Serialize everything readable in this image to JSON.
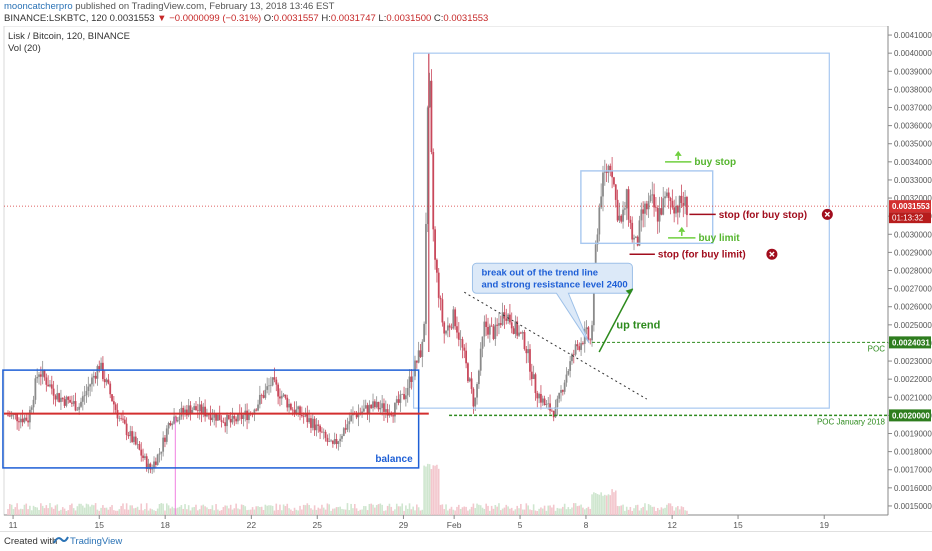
{
  "header": {
    "author": "mooncatcherpro",
    "published": "published on TradingView.com, February 13, 2018 13:46 EST",
    "symbol": "BINANCE:LSKBTC, 120",
    "last": "0.0031553",
    "change": "−0.0000099 (−0.31%)",
    "o_label": "O:",
    "o": "0.0031557",
    "h_label": "H:",
    "h": "0.0031747",
    "l_label": "L:",
    "l": "0.0031500",
    "c_label": "C:",
    "c": "0.0031553"
  },
  "footer": {
    "created": "Created with",
    "brand": "TradingView"
  },
  "colors": {
    "up": "#8a8a8a",
    "down": "#c9485b",
    "blue_box": "#1e5fd6",
    "light_box": "#a8c8f0",
    "red_line": "#d32f2f",
    "green": "#2e8b1e",
    "dark_red": "#a10d1d",
    "callout_fill": "#dce9f8",
    "callout_text": "#1e5fd6",
    "price_bg": "#d32f2f",
    "poc_bg": "#2e7d1e"
  },
  "chart_data": {
    "type": "candlestick",
    "title": "Lisk / Bitcoin, 120, BINANCE",
    "indicator": "Vol (20)",
    "ylim": [
      0.00145,
      0.00415
    ],
    "yticks": [
      "0.0015000",
      "0.0016000",
      "0.0017000",
      "0.0018000",
      "0.0019000",
      "0.0020000",
      "0.0021000",
      "0.0022000",
      "0.0023000",
      "0.0024000",
      "0.0025000",
      "0.0026000",
      "0.0027000",
      "0.0028000",
      "0.0029000",
      "0.0030000",
      "0.0031000",
      "0.0032000",
      "0.0033000",
      "0.0034000",
      "0.0035000",
      "0.0036000",
      "0.0037000",
      "0.0038000",
      "0.0039000",
      "0.0040000",
      "0.0041000"
    ],
    "xlim": [
      0,
      86
    ],
    "xticks": [
      {
        "label": "11",
        "x": 0.5
      },
      {
        "label": "15",
        "x": 9
      },
      {
        "label": "18",
        "x": 15.5
      },
      {
        "label": "22",
        "x": 24
      },
      {
        "label": "25",
        "x": 30.5
      },
      {
        "label": "29",
        "x": 39
      },
      {
        "label": "Feb",
        "x": 44
      },
      {
        "label": "5",
        "x": 50.5
      },
      {
        "label": "8",
        "x": 57
      },
      {
        "label": "12",
        "x": 65.5
      },
      {
        "label": "15",
        "x": 72
      },
      {
        "label": "19",
        "x": 80.5
      }
    ],
    "price_path": [
      [
        0,
        0.002
      ],
      [
        2,
        0.00198
      ],
      [
        3,
        0.00225
      ],
      [
        5,
        0.0021
      ],
      [
        7,
        0.00205
      ],
      [
        9,
        0.00228
      ],
      [
        11,
        0.00198
      ],
      [
        13,
        0.0018
      ],
      [
        14,
        0.0017
      ],
      [
        15,
        0.0018
      ],
      [
        16,
        0.00198
      ],
      [
        18,
        0.00204
      ],
      [
        20,
        0.00201
      ],
      [
        22,
        0.00196
      ],
      [
        24,
        0.00202
      ],
      [
        26,
        0.00218
      ],
      [
        28,
        0.00204
      ],
      [
        30,
        0.00196
      ],
      [
        32,
        0.00182
      ],
      [
        34,
        0.002
      ],
      [
        36,
        0.00205
      ],
      [
        38,
        0.00203
      ],
      [
        39,
        0.0021
      ],
      [
        40,
        0.00225
      ],
      [
        41,
        0.0024
      ],
      [
        41.5,
        0.00395
      ],
      [
        42,
        0.0029
      ],
      [
        43,
        0.00245
      ],
      [
        44,
        0.00255
      ],
      [
        45,
        0.00232
      ],
      [
        46,
        0.00205
      ],
      [
        47,
        0.0025
      ],
      [
        48,
        0.00245
      ],
      [
        49,
        0.00258
      ],
      [
        50,
        0.00248
      ],
      [
        51,
        0.0024
      ],
      [
        52,
        0.00215
      ],
      [
        53,
        0.00205
      ],
      [
        54,
        0.00202
      ],
      [
        55,
        0.00222
      ],
      [
        56,
        0.00237
      ],
      [
        57,
        0.00245
      ],
      [
        57.5,
        0.0024
      ],
      [
        58,
        0.00296
      ],
      [
        58.5,
        0.00325
      ],
      [
        59,
        0.00335
      ],
      [
        59.5,
        0.0034
      ],
      [
        60,
        0.00315
      ],
      [
        60.5,
        0.00305
      ],
      [
        61,
        0.0032
      ],
      [
        61.5,
        0.003
      ],
      [
        62,
        0.00293
      ],
      [
        62.5,
        0.0031
      ],
      [
        63,
        0.00315
      ],
      [
        63.5,
        0.00318
      ],
      [
        64,
        0.0031
      ],
      [
        64.5,
        0.00315
      ],
      [
        65,
        0.0032
      ],
      [
        65.5,
        0.00318
      ],
      [
        66,
        0.00315
      ],
      [
        66.5,
        0.00318
      ],
      [
        67,
        0.00315
      ]
    ],
    "annotations": {
      "balance_label": "balance",
      "callout": [
        "break out of the trend line",
        "and strong resistance level 2400"
      ],
      "up_trend": "up trend",
      "buy_stop": "buy stop",
      "buy_limit": "buy limit",
      "stop_buy_stop": "stop (for buy stop)",
      "stop_buy_limit": "stop (for buy limit)",
      "poc": "POC",
      "poc_jan": "POC January 2018"
    },
    "levels": {
      "current": {
        "value": 0.0031553,
        "label": "0.0031553",
        "countdown": "01:13:32"
      },
      "poc": {
        "value": 0.0024031,
        "label": "0.0024031"
      },
      "poc_jan": {
        "value": 0.002,
        "label": "0.0020000"
      },
      "balance_line": 0.00201
    },
    "boxes": {
      "balance": {
        "x0": -0.5,
        "x1": 40.5,
        "y0": 0.00171,
        "y1": 0.00225
      },
      "range": {
        "x0": 56.5,
        "x1": 69.5,
        "y0": 0.00295,
        "y1": 0.00335
      },
      "big": {
        "x0": 40,
        "x1": 81,
        "y0": 0.00204,
        "y1": 0.004
      }
    }
  }
}
